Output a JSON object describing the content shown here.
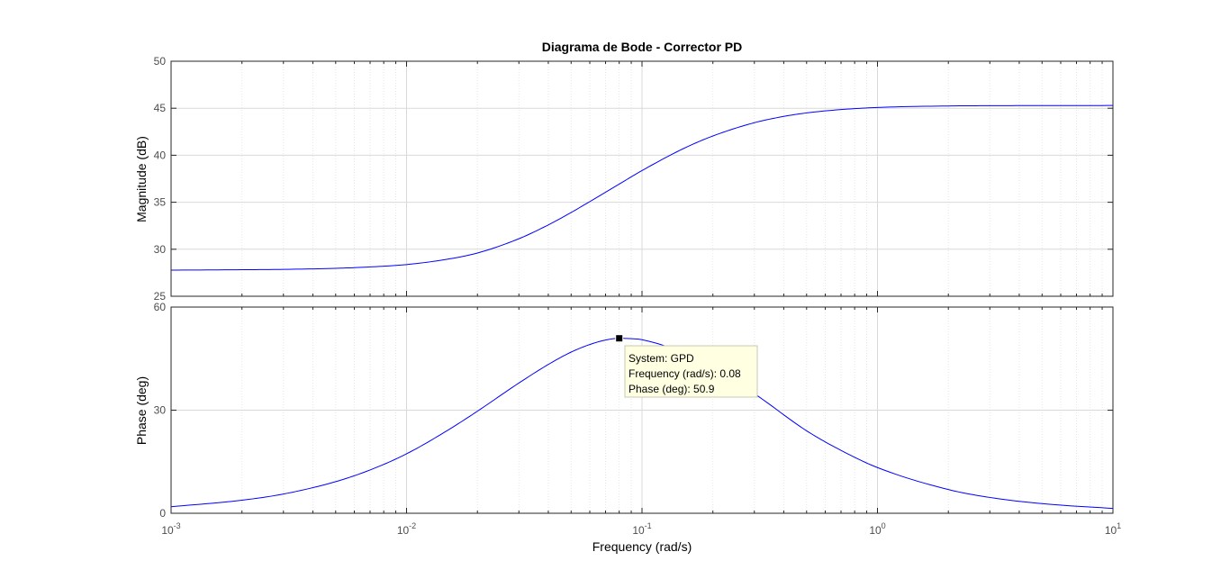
{
  "chart_data": {
    "type": "line",
    "title": "Diagrama de Bode - Corrector PD",
    "xlabel": "Frequency  (rad/s)",
    "xscale": "log",
    "xlim": [
      0.001,
      10
    ],
    "x_ticks": [
      {
        "base": "10",
        "exp": "-3"
      },
      {
        "base": "10",
        "exp": "-2"
      },
      {
        "base": "10",
        "exp": "-1"
      },
      {
        "base": "10",
        "exp": "0"
      },
      {
        "base": "10",
        "exp": "1"
      }
    ],
    "grid": true,
    "colors": {
      "line": "#0000ff",
      "grid_major": "#d9d9d9",
      "axes": "#262626",
      "datatip_bg": "#ffffe1"
    },
    "subplots": [
      {
        "ylabel": "Magnitude (dB)",
        "ylim": [
          25,
          50
        ],
        "yticks": [
          25,
          30,
          35,
          40,
          45,
          50
        ],
        "series": [
          {
            "x": [
              0.001,
              0.002,
              0.003,
              0.005,
              0.007,
              0.01,
              0.015,
              0.02,
              0.03,
              0.04,
              0.05,
              0.06,
              0.08,
              0.1,
              0.15,
              0.2,
              0.3,
              0.4,
              0.5,
              0.7,
              1,
              2,
              3,
              5,
              10
            ],
            "values": [
              27.78,
              27.82,
              27.86,
              27.97,
              28.12,
              28.37,
              28.95,
              29.6,
              31.12,
              32.59,
              33.91,
              35.07,
              36.93,
              38.37,
              40.71,
              42.05,
              43.46,
              44.13,
              44.5,
              44.86,
              45.08,
              45.24,
              45.27,
              45.28,
              45.29
            ]
          }
        ]
      },
      {
        "ylabel": "Phase (deg)",
        "ylim": [
          0,
          60
        ],
        "yticks": [
          0,
          30,
          60
        ],
        "series": [
          {
            "x": [
              0.001,
              0.002,
              0.003,
              0.005,
              0.007,
              0.01,
              0.015,
              0.02,
              0.03,
              0.04,
              0.05,
              0.06,
              0.07,
              0.08,
              0.09,
              0.1,
              0.15,
              0.2,
              0.3,
              0.5,
              0.7,
              1,
              2,
              3,
              5,
              10
            ],
            "values": [
              1.9,
              3.8,
              5.6,
              9.2,
              12.6,
              17.3,
              24.2,
              29.7,
              37.9,
              43.3,
              46.9,
              49.1,
              50.4,
              50.9,
              50.8,
              50.5,
              46.7,
              42.3,
              34.8,
              24.0,
              18.3,
              13.3,
              6.9,
              4.6,
              2.8,
              1.4
            ]
          }
        ]
      }
    ],
    "datatip": {
      "system_label": "System: GPD",
      "frequency_label": "Frequency (rad/s): 0.08",
      "phase_label": "Phase (deg): 50.9",
      "x": 0.08,
      "y": 50.9
    }
  }
}
